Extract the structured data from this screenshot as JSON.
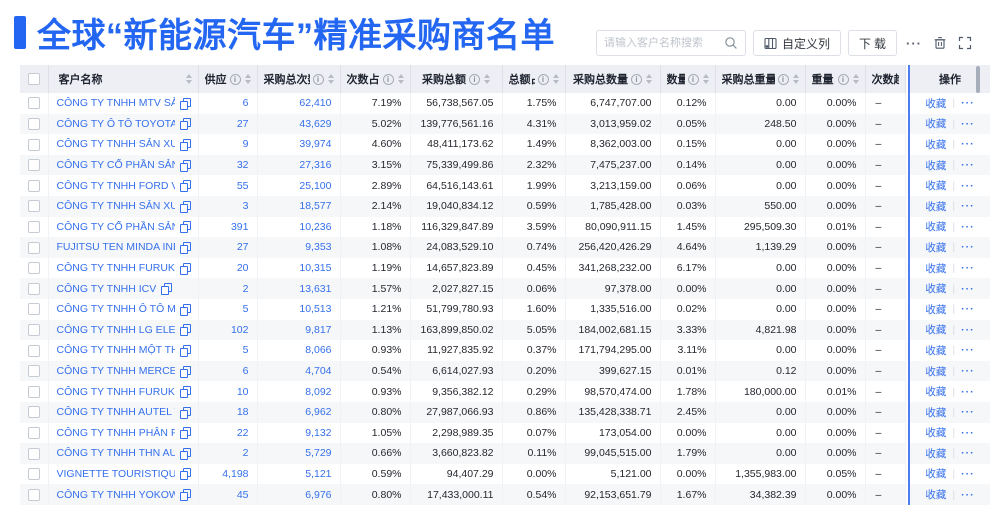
{
  "page": {
    "title": "全球“新能源汽车”精准采购商名单"
  },
  "toolbar": {
    "search_placeholder": "请输入客户名称搜索",
    "customize_columns": "自定义列",
    "download": "下载",
    "more": "···"
  },
  "colors": {
    "accent": "#2366F1",
    "link": "#3570EC",
    "fixed_divider": "#4C7DF2"
  },
  "table": {
    "columns": [
      {
        "key": "name",
        "label": "客户名称",
        "info": false,
        "sort": true
      },
      {
        "key": "supplier",
        "label": "供应商",
        "info": true,
        "sort": true
      },
      {
        "key": "times",
        "label": "采购总次数",
        "info": true,
        "sort": true
      },
      {
        "key": "times_pct",
        "label": "次数占比",
        "info": true,
        "sort": true
      },
      {
        "key": "amount",
        "label": "采购总额",
        "info": true,
        "sort": true
      },
      {
        "key": "amount_pct",
        "label": "总额占比",
        "info": true,
        "sort": true
      },
      {
        "key": "qty",
        "label": "采购总数量",
        "info": true,
        "sort": true
      },
      {
        "key": "qty_pct",
        "label": "数量占比",
        "info": true,
        "sort": true
      },
      {
        "key": "weight",
        "label": "采购总重量",
        "info": true,
        "sort": true
      },
      {
        "key": "weight_pct",
        "label": "重量占比",
        "info": true,
        "sort": true
      },
      {
        "key": "trend",
        "label": "次数趋势",
        "info": false,
        "sort": false
      },
      {
        "key": "actions",
        "label": "操作",
        "info": false,
        "sort": false
      }
    ],
    "trend_value": "–",
    "actions": {
      "favorite": "收藏",
      "more": "···"
    },
    "rows": [
      {
        "name": "CÔNG TY TNHH MTV SẢN XUẤ...",
        "supplier": "6",
        "times": "62,410",
        "times_pct": "7.19%",
        "amount": "56,738,567.05",
        "amount_pct": "1.75%",
        "qty": "6,747,707.00",
        "qty_pct": "0.12%",
        "weight": "0.00",
        "weight_pct": "0.00%"
      },
      {
        "name": "CÔNG TY Ô TÔ TOYOTA VIỆT ...",
        "supplier": "27",
        "times": "43,629",
        "times_pct": "5.02%",
        "amount": "139,776,561.16",
        "amount_pct": "4.31%",
        "qty": "3,013,959.02",
        "qty_pct": "0.05%",
        "weight": "248.50",
        "weight_pct": "0.00%"
      },
      {
        "name": "CÔNG TY TNHH SẢN XUẤT VÀ ...",
        "supplier": "9",
        "times": "39,974",
        "times_pct": "4.60%",
        "amount": "48,411,173.62",
        "amount_pct": "1.49%",
        "qty": "8,362,003.00",
        "qty_pct": "0.15%",
        "weight": "0.00",
        "weight_pct": "0.00%"
      },
      {
        "name": "CÔNG TY CỔ PHẦN SẢN XUẤT...",
        "supplier": "32",
        "times": "27,316",
        "times_pct": "3.15%",
        "amount": "75,339,499.86",
        "amount_pct": "2.32%",
        "qty": "7,475,237.00",
        "qty_pct": "0.14%",
        "weight": "0.00",
        "weight_pct": "0.00%"
      },
      {
        "name": "CÔNG TY TNHH FORD VIỆT NAM",
        "supplier": "55",
        "times": "25,100",
        "times_pct": "2.89%",
        "amount": "64,516,143.61",
        "amount_pct": "1.99%",
        "qty": "3,213,159.00",
        "qty_pct": "0.06%",
        "weight": "0.00",
        "weight_pct": "0.00%"
      },
      {
        "name": "CÔNG TY TNHH SẢN XUẤT VÀ ...",
        "supplier": "3",
        "times": "18,577",
        "times_pct": "2.14%",
        "amount": "19,040,834.12",
        "amount_pct": "0.59%",
        "qty": "1,785,428.00",
        "qty_pct": "0.03%",
        "weight": "550.00",
        "weight_pct": "0.00%"
      },
      {
        "name": "CÔNG TY CỔ PHẦN SẢN XUẤT...",
        "supplier": "391",
        "times": "10,236",
        "times_pct": "1.18%",
        "amount": "116,329,847.89",
        "amount_pct": "3.59%",
        "qty": "80,090,911.15",
        "qty_pct": "1.45%",
        "weight": "295,509.30",
        "weight_pct": "0.01%"
      },
      {
        "name": "FUJITSU TEN MINDA INDIA PVT...",
        "supplier": "27",
        "times": "9,353",
        "times_pct": "1.08%",
        "amount": "24,083,529.10",
        "amount_pct": "0.74%",
        "qty": "256,420,426.29",
        "qty_pct": "4.64%",
        "weight": "1,139.29",
        "weight_pct": "0.00%"
      },
      {
        "name": "CÔNG TY TNHH FURUKAWA A...",
        "supplier": "20",
        "times": "10,315",
        "times_pct": "1.19%",
        "amount": "14,657,823.89",
        "amount_pct": "0.45%",
        "qty": "341,268,232.00",
        "qty_pct": "6.17%",
        "weight": "0.00",
        "weight_pct": "0.00%"
      },
      {
        "name": "CÔNG TY TNHH ICV",
        "supplier": "2",
        "times": "13,631",
        "times_pct": "1.57%",
        "amount": "2,027,827.15",
        "amount_pct": "0.06%",
        "qty": "97,378.00",
        "qty_pct": "0.00%",
        "weight": "0.00",
        "weight_pct": "0.00%"
      },
      {
        "name": "CÔNG TY TNHH Ô TÔ MITSUBI...",
        "supplier": "5",
        "times": "10,513",
        "times_pct": "1.21%",
        "amount": "51,799,780.93",
        "amount_pct": "1.60%",
        "qty": "1,335,516.00",
        "qty_pct": "0.02%",
        "weight": "0.00",
        "weight_pct": "0.00%"
      },
      {
        "name": "CÔNG TY TNHH LG ELECTRON...",
        "supplier": "102",
        "times": "9,817",
        "times_pct": "1.13%",
        "amount": "163,899,850.02",
        "amount_pct": "5.05%",
        "qty": "184,002,681.15",
        "qty_pct": "3.33%",
        "weight": "4,821.98",
        "weight_pct": "0.00%"
      },
      {
        "name": "CÔNG TY TNHH MỘT THÀNH V...",
        "supplier": "5",
        "times": "8,066",
        "times_pct": "0.93%",
        "amount": "11,927,835.92",
        "amount_pct": "0.37%",
        "qty": "171,794,295.00",
        "qty_pct": "3.11%",
        "weight": "0.00",
        "weight_pct": "0.00%"
      },
      {
        "name": "CÔNG TY TNHH MERCEDES–B...",
        "supplier": "6",
        "times": "4,704",
        "times_pct": "0.54%",
        "amount": "6,614,027.93",
        "amount_pct": "0.20%",
        "qty": "399,627.15",
        "qty_pct": "0.01%",
        "weight": "0.12",
        "weight_pct": "0.00%"
      },
      {
        "name": "CÔNG TY TNHH FURUKAWA A...",
        "supplier": "10",
        "times": "8,092",
        "times_pct": "0.93%",
        "amount": "9,356,382.12",
        "amount_pct": "0.29%",
        "qty": "98,570,474.00",
        "qty_pct": "1.78%",
        "weight": "180,000.00",
        "weight_pct": "0.01%"
      },
      {
        "name": "CÔNG TY TNHH AUTEL VIỆT N...",
        "supplier": "18",
        "times": "6,962",
        "times_pct": "0.80%",
        "amount": "27,987,066.93",
        "amount_pct": "0.86%",
        "qty": "135,428,338.71",
        "qty_pct": "2.45%",
        "weight": "0.00",
        "weight_pct": "0.00%"
      },
      {
        "name": "CÔNG TY TNHH PHÂN PHỐI T...",
        "supplier": "22",
        "times": "9,132",
        "times_pct": "1.05%",
        "amount": "2,298,989.35",
        "amount_pct": "0.07%",
        "qty": "173,054.00",
        "qty_pct": "0.00%",
        "weight": "0.00",
        "weight_pct": "0.00%"
      },
      {
        "name": "CÔNG TY TNHH THN AUTOPAR...",
        "supplier": "2",
        "times": "5,729",
        "times_pct": "0.66%",
        "amount": "3,660,823.82",
        "amount_pct": "0.11%",
        "qty": "99,045,515.00",
        "qty_pct": "1.79%",
        "weight": "0.00",
        "weight_pct": "0.00%"
      },
      {
        "name": "VIGNETTE TOURISTIQUE G UNI...",
        "supplier": "4,198",
        "times": "5,121",
        "times_pct": "0.59%",
        "amount": "94,407.29",
        "amount_pct": "0.00%",
        "qty": "5,121.00",
        "qty_pct": "0.00%",
        "weight": "1,355,983.00",
        "weight_pct": "0.05%"
      },
      {
        "name": "CÔNG TY TNHH YOKOWO VIỆT...",
        "supplier": "45",
        "times": "6,976",
        "times_pct": "0.80%",
        "amount": "17,433,000.11",
        "amount_pct": "0.54%",
        "qty": "92,153,651.79",
        "qty_pct": "1.67%",
        "weight": "34,382.39",
        "weight_pct": "0.00%"
      }
    ]
  }
}
